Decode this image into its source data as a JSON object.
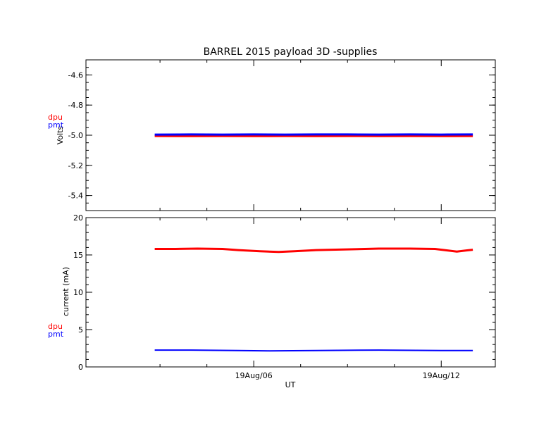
{
  "chart_data": {
    "title": "BARREL 2015 payload 3D -supplies",
    "xlabel": "UT",
    "x_ticks": [
      "19Aug/06",
      "19Aug/12"
    ],
    "x_tick_hours": [
      6,
      12
    ],
    "x_range_hours": [
      0.63,
      13.73
    ],
    "x_data_range_hours": [
      2.83,
      13.01
    ],
    "colors": {
      "dpu": "#ff0000",
      "pmt": "#0000ff",
      "axis": "#000000"
    },
    "panels": [
      {
        "type": "line",
        "ylabel": "Volts",
        "ylim": [
          -5.5,
          -4.5
        ],
        "yticks": [
          -4.6,
          -4.8,
          -5.0,
          -5.2,
          -5.4
        ],
        "ytick_labels": [
          "-4.6",
          "-4.8",
          "-5.0",
          "-5.2",
          "-5.4"
        ],
        "minor_per_major": 4,
        "legend": [
          "dpu",
          "pmt"
        ],
        "series": [
          {
            "name": "dpu",
            "color": "#ff0000",
            "thickness": 3,
            "points": [
              [
                2.83,
                -5.005
              ],
              [
                4,
                -5.006
              ],
              [
                5,
                -5.005
              ],
              [
                6,
                -5.006
              ],
              [
                7,
                -5.005
              ],
              [
                8,
                -5.006
              ],
              [
                9,
                -5.005
              ],
              [
                10,
                -5.006
              ],
              [
                11,
                -5.005
              ],
              [
                12,
                -5.006
              ],
              [
                13.01,
                -5.005
              ]
            ]
          },
          {
            "name": "pmt",
            "color": "#0000ff",
            "thickness": 3,
            "points": [
              [
                2.83,
                -4.996
              ],
              [
                4,
                -4.995
              ],
              [
                5,
                -4.996
              ],
              [
                6,
                -4.995
              ],
              [
                7,
                -4.996
              ],
              [
                8,
                -4.995
              ],
              [
                9,
                -4.995
              ],
              [
                10,
                -4.996
              ],
              [
                11,
                -4.995
              ],
              [
                12,
                -4.996
              ],
              [
                13.01,
                -4.995
              ]
            ]
          }
        ]
      },
      {
        "type": "line",
        "ylabel": "current (mA)",
        "ylim": [
          0,
          20
        ],
        "yticks": [
          0,
          5,
          10,
          15,
          20
        ],
        "ytick_labels": [
          "0",
          "5",
          "10",
          "15",
          "20"
        ],
        "minor_per_major": 5,
        "legend": [
          "dpu",
          "pmt"
        ],
        "series": [
          {
            "name": "dpu",
            "color": "#ff0000",
            "thickness": 3,
            "points": [
              [
                2.83,
                15.8
              ],
              [
                3.5,
                15.8
              ],
              [
                4.2,
                15.85
              ],
              [
                5.0,
                15.8
              ],
              [
                5.5,
                15.65
              ],
              [
                6.2,
                15.5
              ],
              [
                6.8,
                15.4
              ],
              [
                7.3,
                15.5
              ],
              [
                8.0,
                15.65
              ],
              [
                9.0,
                15.75
              ],
              [
                10.0,
                15.85
              ],
              [
                11.0,
                15.85
              ],
              [
                11.8,
                15.8
              ],
              [
                12.2,
                15.6
              ],
              [
                12.5,
                15.45
              ],
              [
                12.8,
                15.6
              ],
              [
                13.01,
                15.7
              ]
            ]
          },
          {
            "name": "pmt",
            "color": "#0000ff",
            "thickness": 2,
            "points": [
              [
                2.83,
                2.25
              ],
              [
                4,
                2.25
              ],
              [
                5.5,
                2.2
              ],
              [
                6.5,
                2.15
              ],
              [
                8,
                2.2
              ],
              [
                10,
                2.25
              ],
              [
                12,
                2.2
              ],
              [
                13.01,
                2.2
              ]
            ]
          }
        ]
      }
    ]
  }
}
